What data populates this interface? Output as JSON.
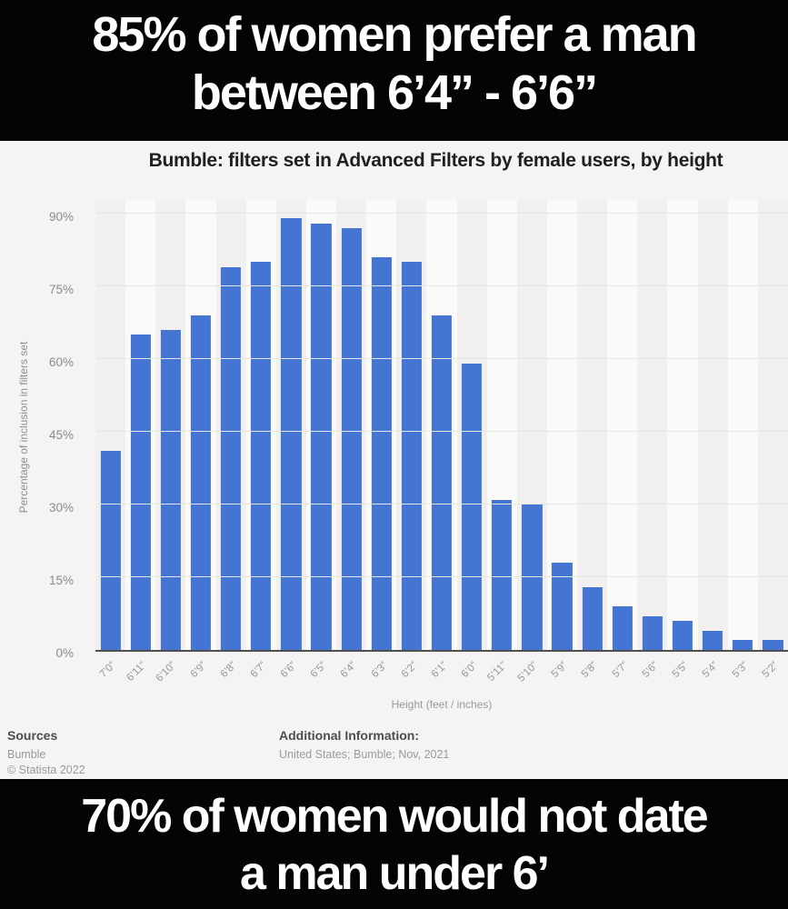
{
  "top_banner": {
    "line1": "85% of women prefer a man",
    "line2": "between 6’4”  -  6’6”"
  },
  "bottom_banner": {
    "line1": "70% of women would not date",
    "line2": "a man under 6’"
  },
  "chart_data": {
    "type": "bar",
    "title": "Bumble: filters set in Advanced Filters by female users, by height",
    "xlabel": "Height (feet / inches)",
    "ylabel": "Percentage of inclusion in filters set",
    "categories": [
      "7’0”",
      "6’11”",
      "6’10”",
      "6’9”",
      "6’8”",
      "6’7”",
      "6’6”",
      "6’5”",
      "6’4”",
      "6’3”",
      "6’2”",
      "6’1”",
      "6’0”",
      "5’11”",
      "5’10”",
      "5’9”",
      "5’8”",
      "5’7”",
      "5’6”",
      "5’5”",
      "5’4”",
      "5’3”",
      "5’2”"
    ],
    "values": [
      41,
      65,
      66,
      69,
      79,
      80,
      89,
      88,
      87,
      81,
      80,
      69,
      59,
      31,
      30,
      18,
      13,
      9,
      7,
      6,
      4,
      2,
      2
    ],
    "y_ticks": [
      0,
      15,
      30,
      45,
      60,
      75,
      90
    ],
    "ylim": [
      0,
      90
    ],
    "grid": true,
    "legend": "none",
    "bar_color": "#4475d2"
  },
  "footer": {
    "sources_label": "Sources",
    "source_name": "Bumble",
    "copyright": "© Statista 2022",
    "additional_label": "Additional Information:",
    "additional_info": "United States; Bumble; Nov, 2021"
  },
  "colors": {
    "banner_bg": "#040404",
    "banner_text": "#ffffff",
    "card_bg": "#f5f4f2",
    "bar": "#4475d2",
    "stripe_dark": "#f1f0ee",
    "stripe_light": "#fafaf8",
    "gridline": "#e6e6e3",
    "axis_text": "#9a9a9a",
    "title_text": "#1f1f1f"
  }
}
